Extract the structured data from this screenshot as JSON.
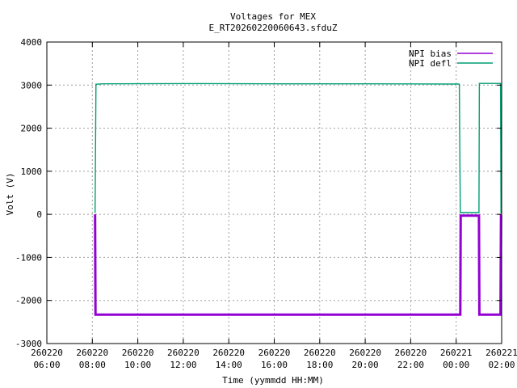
{
  "chart_data": {
    "type": "line",
    "title": "Voltages for MEX",
    "subtitle": "E_RT20260220060643.sfduZ",
    "xlabel": "Time (yymmdd HH:MM)",
    "ylabel": "Volt (V)",
    "x_range_hours": [
      0,
      20
    ],
    "ylim": [
      -3000,
      4000
    ],
    "grid": true,
    "legend_position": "top-right",
    "y_ticks": [
      {
        "value": -3000,
        "label": "-3000"
      },
      {
        "value": -2000,
        "label": "-2000"
      },
      {
        "value": -1000,
        "label": "-1000"
      },
      {
        "value": 0,
        "label": "0"
      },
      {
        "value": 1000,
        "label": "1000"
      },
      {
        "value": 2000,
        "label": "2000"
      },
      {
        "value": 3000,
        "label": "3000"
      },
      {
        "value": 4000,
        "label": "4000"
      }
    ],
    "x_ticks": [
      {
        "value": 0,
        "date": "260220",
        "time": "06:00"
      },
      {
        "value": 2,
        "date": "260220",
        "time": "08:00"
      },
      {
        "value": 4,
        "date": "260220",
        "time": "10:00"
      },
      {
        "value": 6,
        "date": "260220",
        "time": "12:00"
      },
      {
        "value": 8,
        "date": "260220",
        "time": "14:00"
      },
      {
        "value": 10,
        "date": "260220",
        "time": "16:00"
      },
      {
        "value": 12,
        "date": "260220",
        "time": "18:00"
      },
      {
        "value": 14,
        "date": "260220",
        "time": "20:00"
      },
      {
        "value": 16,
        "date": "260220",
        "time": "22:00"
      },
      {
        "value": 18,
        "date": "260221",
        "time": "00:00"
      },
      {
        "value": 20,
        "date": "260221",
        "time": "02:00"
      }
    ],
    "series": [
      {
        "name": "NPI bias",
        "color": "#9400d3",
        "points": [
          [
            2.12,
            0
          ],
          [
            2.14,
            -2330
          ],
          [
            18.18,
            -2330
          ],
          [
            18.2,
            -30
          ],
          [
            19.0,
            -30
          ],
          [
            19.02,
            -2330
          ],
          [
            19.95,
            -2330
          ],
          [
            19.97,
            -30
          ],
          [
            20.0,
            -30
          ]
        ]
      },
      {
        "name": "NPI defl",
        "color": "#009e73",
        "points": [
          [
            2.12,
            30
          ],
          [
            2.16,
            3020
          ],
          [
            2.5,
            3030
          ],
          [
            6.0,
            3035
          ],
          [
            10.0,
            3030
          ],
          [
            14.0,
            3030
          ],
          [
            18.1,
            3025
          ],
          [
            18.14,
            3020
          ],
          [
            18.18,
            40
          ],
          [
            19.0,
            40
          ],
          [
            19.02,
            3040
          ],
          [
            19.95,
            3040
          ],
          [
            19.97,
            40
          ],
          [
            20.0,
            40
          ]
        ]
      }
    ]
  }
}
